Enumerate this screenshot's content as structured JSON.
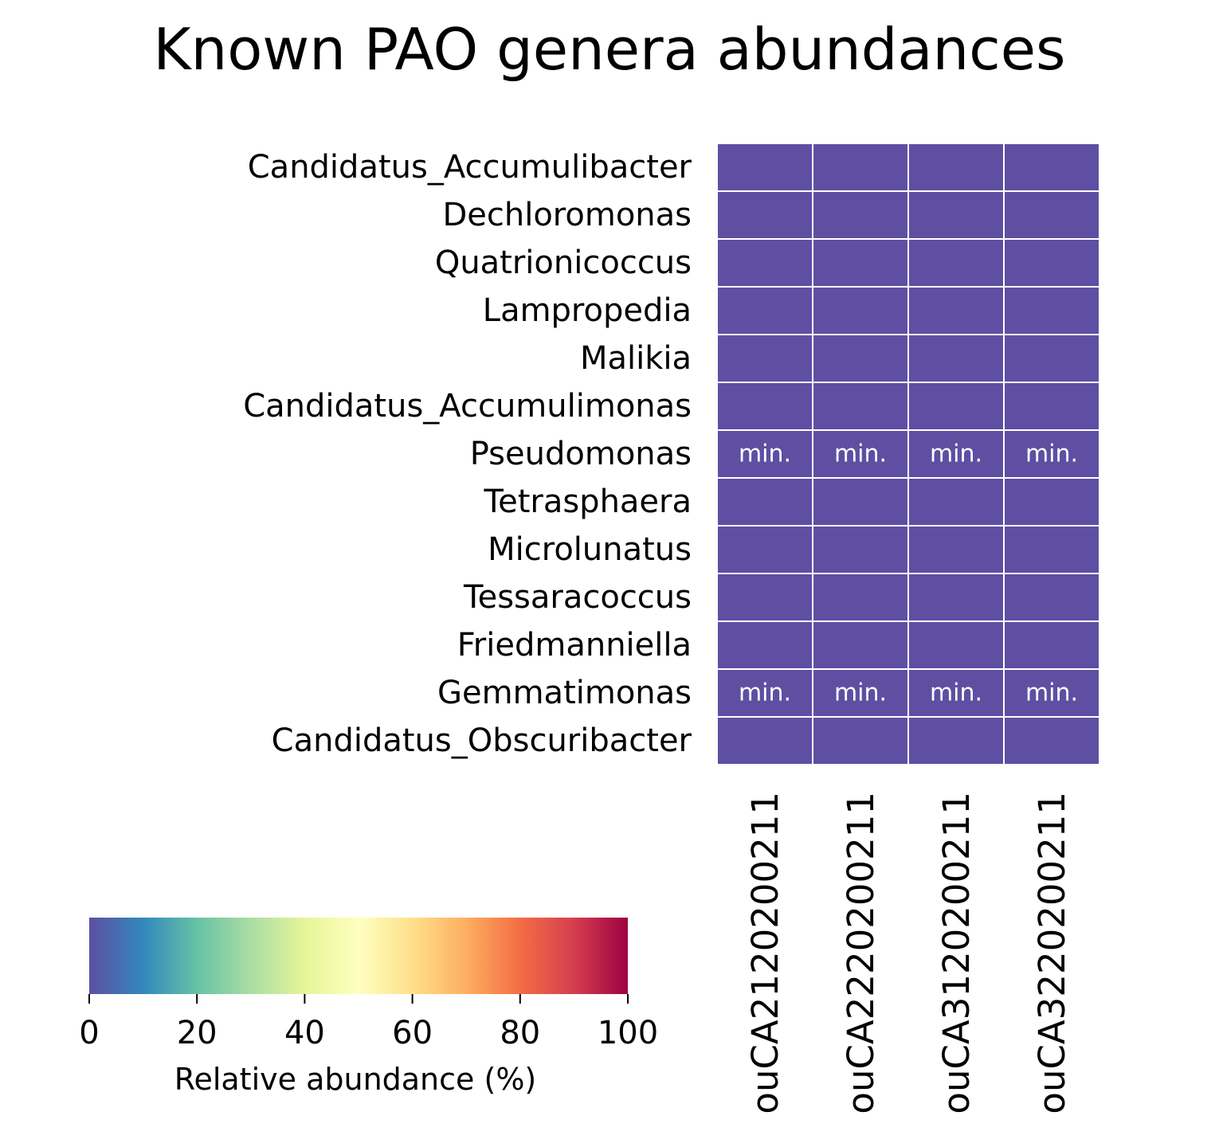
{
  "chart_data": {
    "type": "heatmap",
    "title": "Known PAO genera abundances",
    "rows": [
      "Candidatus_Accumulibacter",
      "Dechloromonas",
      "Quatrionicoccus",
      "Lampropedia",
      "Malikia",
      "Candidatus_Accumulimonas",
      "Pseudomonas",
      "Tetrasphaera",
      "Microlunatus",
      "Tessaracoccus",
      "Friedmanniella",
      "Gemmatimonas",
      "Candidatus_Obscuribacter"
    ],
    "columns": [
      "ouCA2120200211",
      "ouCA2220200211",
      "ouCA3120200211",
      "ouCA3220200211"
    ],
    "values": [
      [
        0,
        0,
        0,
        0
      ],
      [
        0,
        0,
        0,
        0
      ],
      [
        0,
        0,
        0,
        0
      ],
      [
        0,
        0,
        0,
        0
      ],
      [
        0,
        0,
        0,
        0
      ],
      [
        0,
        0,
        0,
        0
      ],
      [
        0,
        0,
        0,
        0
      ],
      [
        0,
        0,
        0,
        0
      ],
      [
        0,
        0,
        0,
        0
      ],
      [
        0,
        0,
        0,
        0
      ],
      [
        0,
        0,
        0,
        0
      ],
      [
        0,
        0,
        0,
        0
      ],
      [
        0,
        0,
        0,
        0
      ]
    ],
    "annotations": [
      [
        "",
        "",
        "",
        ""
      ],
      [
        "",
        "",
        "",
        ""
      ],
      [
        "",
        "",
        "",
        ""
      ],
      [
        "",
        "",
        "",
        ""
      ],
      [
        "",
        "",
        "",
        ""
      ],
      [
        "",
        "",
        "",
        ""
      ],
      [
        "min.",
        "min.",
        "min.",
        "min."
      ],
      [
        "",
        "",
        "",
        ""
      ],
      [
        "",
        "",
        "",
        ""
      ],
      [
        "",
        "",
        "",
        ""
      ],
      [
        "",
        "",
        "",
        ""
      ],
      [
        "min.",
        "min.",
        "min.",
        "min."
      ],
      [
        "",
        "",
        "",
        ""
      ]
    ],
    "colorbar": {
      "label": "Relative abundance (%)",
      "range": [
        0,
        100
      ],
      "ticks": [
        0,
        20,
        40,
        60,
        80,
        100
      ],
      "tick_labels": [
        "0",
        "20",
        "40",
        "60",
        "80",
        "100"
      ],
      "colormap": "Spectral_r",
      "orientation": "horizontal"
    },
    "colors": {
      "stops": [
        "#5e4fa2",
        "#3288bd",
        "#66c2a5",
        "#abdda4",
        "#e6f598",
        "#ffffbf",
        "#fee08b",
        "#fdae61",
        "#f46d43",
        "#d53e4f",
        "#9e0142"
      ],
      "cell_border": "#ffffff",
      "annotation_text": "#ffffff"
    }
  }
}
